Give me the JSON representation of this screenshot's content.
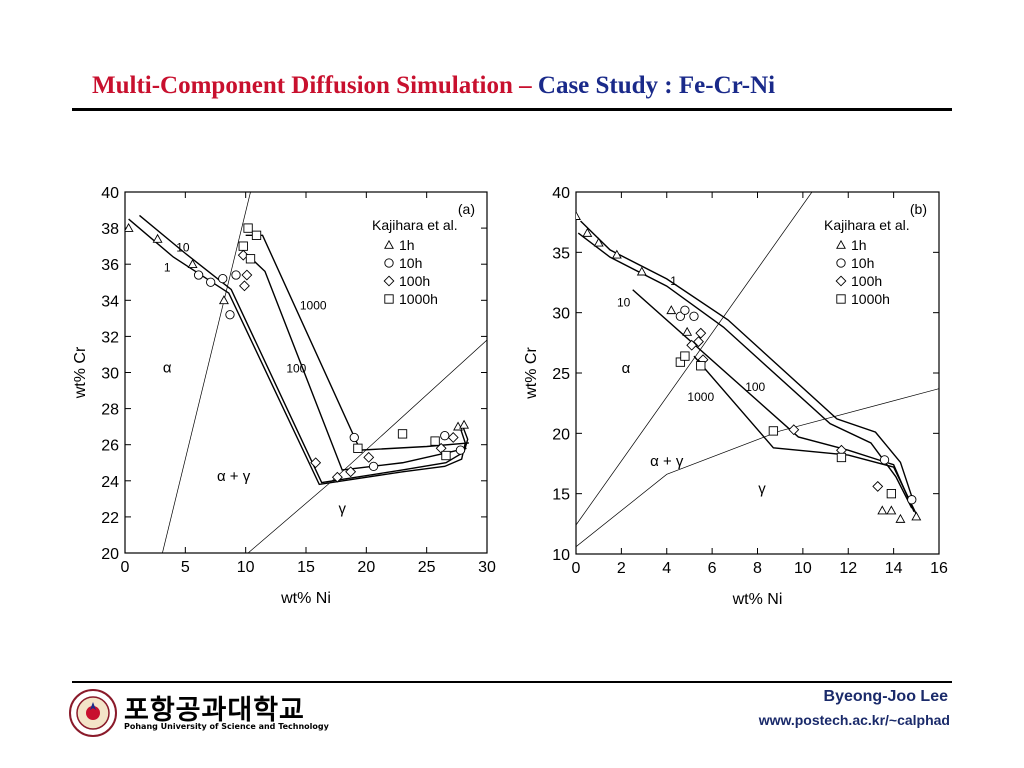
{
  "slide": {
    "title_part1": "Multi-Component Diffusion Simulation –",
    "title_part2": " Case Study : Fe-Cr-Ni",
    "university_kr": "포항공과대학교",
    "university_en": "Pohang University of Science and Technology",
    "author": "Byeong-Joo Lee",
    "url": "www.postech.ac.kr/~calphad",
    "title_colors": {
      "part1": "#c8102e",
      "part2": "#1a2a8a"
    }
  },
  "chart_data": [
    {
      "type": "line",
      "panel": "(a)",
      "xlabel": "wt% Ni",
      "ylabel": "wt% Cr",
      "xlim": [
        0,
        30
      ],
      "ylim": [
        20,
        40
      ],
      "xticks": [
        0,
        5,
        10,
        15,
        20,
        25,
        30
      ],
      "yticks": [
        20,
        22,
        24,
        26,
        28,
        30,
        32,
        34,
        36,
        38,
        40
      ],
      "legend_title": "Kajihara et al.",
      "legend_position": "top-right",
      "legend": [
        {
          "label": "1h",
          "marker": "triangle"
        },
        {
          "label": "10h",
          "marker": "circle"
        },
        {
          "label": "100h",
          "marker": "diamond"
        },
        {
          "label": "1000h",
          "marker": "square"
        }
      ],
      "region_labels": [
        {
          "text": "α",
          "x": 3.5,
          "y": 30
        },
        {
          "text": "α + γ",
          "x": 9,
          "y": 24
        },
        {
          "text": "γ",
          "x": 18,
          "y": 22.2
        }
      ],
      "boundaries": [
        [
          [
            3.1,
            20
          ],
          [
            10.4,
            40
          ]
        ],
        [
          [
            10.2,
            20
          ],
          [
            17,
            23.9
          ],
          [
            30,
            31.8
          ]
        ]
      ],
      "series": [
        {
          "name": "1",
          "label_pos": [
            3.5,
            35.6
          ],
          "points": [
            [
              0.3,
              38.5
            ],
            [
              4,
              36.4
            ],
            [
              8.6,
              34.4
            ],
            [
              16.1,
              23.8
            ],
            [
              23,
              24.5
            ],
            [
              26.5,
              24.8
            ],
            [
              27.9,
              25.2
            ],
            [
              28.2,
              26.1
            ],
            [
              27.8,
              26.9
            ]
          ]
        },
        {
          "name": "10",
          "label_pos": [
            4.8,
            36.7
          ],
          "points": [
            [
              1.2,
              38.7
            ],
            [
              5,
              36.6
            ],
            [
              8.8,
              34.6
            ],
            [
              16.3,
              23.9
            ],
            [
              23,
              24.6
            ],
            [
              26.6,
              25
            ],
            [
              28.1,
              25.6
            ],
            [
              28.4,
              26.3
            ],
            [
              28,
              27
            ]
          ]
        },
        {
          "name": "100",
          "label_pos": [
            14.2,
            30
          ],
          "points": [
            [
              10.5,
              36.3
            ],
            [
              11.6,
              35.6
            ],
            [
              18,
              24.6
            ],
            [
              23,
              25
            ],
            [
              28.3,
              25.8
            ]
          ]
        },
        {
          "name": "1000",
          "label_pos": [
            15.6,
            33.5
          ],
          "points": [
            [
              10,
              37.6
            ],
            [
              11.4,
              37.6
            ],
            [
              19.5,
              25.7
            ],
            [
              25,
              25.9
            ],
            [
              28.5,
              26.1
            ]
          ]
        }
      ],
      "markers": {
        "triangle": [
          [
            0.3,
            38
          ],
          [
            2.7,
            37.4
          ],
          [
            5.6,
            36
          ],
          [
            8.2,
            34
          ],
          [
            27.6,
            27
          ],
          [
            28.1,
            27.1
          ]
        ],
        "circle": [
          [
            6.1,
            35.4
          ],
          [
            7.1,
            35
          ],
          [
            8.1,
            35.2
          ],
          [
            9.2,
            35.4
          ],
          [
            8.7,
            33.2
          ],
          [
            19,
            26.4
          ],
          [
            20.6,
            24.8
          ],
          [
            26.5,
            26.5
          ],
          [
            27.8,
            25.7
          ]
        ],
        "diamond": [
          [
            9.8,
            36.5
          ],
          [
            10.1,
            35.4
          ],
          [
            9.9,
            34.8
          ],
          [
            15.8,
            25
          ],
          [
            17.6,
            24.2
          ],
          [
            18.7,
            24.5
          ],
          [
            20.2,
            25.3
          ],
          [
            26.2,
            25.8
          ],
          [
            27.2,
            26.4
          ]
        ],
        "square": [
          [
            10.2,
            38
          ],
          [
            10.9,
            37.6
          ],
          [
            9.8,
            37
          ],
          [
            10.4,
            36.3
          ],
          [
            19.3,
            25.8
          ],
          [
            23,
            26.6
          ],
          [
            25.7,
            26.2
          ],
          [
            26.6,
            25.4
          ]
        ]
      }
    },
    {
      "type": "line",
      "panel": "(b)",
      "xlabel": "wt% Ni",
      "ylabel": "wt% Cr",
      "xlim": [
        0,
        16
      ],
      "ylim": [
        10,
        40
      ],
      "xticks": [
        0,
        2,
        4,
        6,
        8,
        10,
        12,
        14,
        16
      ],
      "yticks": [
        10,
        15,
        20,
        25,
        30,
        35,
        40
      ],
      "legend_title": "Kajihara et al.",
      "legend_position": "top-right",
      "legend": [
        {
          "label": "1h",
          "marker": "triangle"
        },
        {
          "label": "10h",
          "marker": "circle"
        },
        {
          "label": "100h",
          "marker": "diamond"
        },
        {
          "label": "1000h",
          "marker": "square"
        }
      ],
      "region_labels": [
        {
          "text": "α",
          "x": 2.2,
          "y": 25
        },
        {
          "text": "α + γ",
          "x": 4,
          "y": 17.3
        },
        {
          "text": "γ",
          "x": 8.2,
          "y": 15
        }
      ],
      "boundaries": [
        [
          [
            0,
            12.4
          ],
          [
            10.4,
            40
          ]
        ],
        [
          [
            0,
            10.6
          ],
          [
            4,
            16.6
          ],
          [
            9,
            20.2
          ],
          [
            16,
            23.7
          ]
        ]
      ],
      "series": [
        {
          "name": "1",
          "label_pos": [
            4.3,
            32.3
          ],
          "points": [
            [
              0.2,
              37.6
            ],
            [
              1.5,
              35.2
            ],
            [
              4,
              32.8
            ],
            [
              6.7,
              29.4
            ],
            [
              11.5,
              21.2
            ],
            [
              13.2,
              20.1
            ],
            [
              14.3,
              17.6
            ],
            [
              14.9,
              14.2
            ]
          ]
        },
        {
          "name": "10",
          "label_pos": [
            2.1,
            30.5
          ],
          "points": [
            [
              0.1,
              36.6
            ],
            [
              1.5,
              34.6
            ],
            [
              4,
              32.2
            ],
            [
              6.5,
              28.8
            ],
            [
              11.2,
              20.8
            ],
            [
              13,
              19.2
            ],
            [
              14.1,
              16.4
            ],
            [
              14.8,
              13.8
            ]
          ]
        },
        {
          "name": "100",
          "label_pos": [
            7.9,
            23.5
          ],
          "points": [
            [
              2.5,
              31.9
            ],
            [
              9.8,
              19.7
            ],
            [
              12,
              18.6
            ],
            [
              14,
              17.4
            ],
            [
              14.9,
              13.5
            ]
          ]
        },
        {
          "name": "1000",
          "label_pos": [
            5.5,
            22.7
          ],
          "points": [
            [
              5.2,
              26.4
            ],
            [
              8.7,
              18.8
            ],
            [
              12,
              18.2
            ],
            [
              14,
              17.2
            ],
            [
              15,
              13.3
            ]
          ]
        }
      ],
      "markers": {
        "triangle": [
          [
            0,
            38
          ],
          [
            0.5,
            36.6
          ],
          [
            1,
            35.8
          ],
          [
            1.8,
            34.8
          ],
          [
            2.9,
            33.4
          ],
          [
            4.2,
            30.2
          ],
          [
            4.9,
            28.4
          ],
          [
            13.5,
            13.6
          ],
          [
            13.9,
            13.6
          ],
          [
            14.3,
            12.9
          ],
          [
            15,
            13.1
          ]
        ],
        "circle": [
          [
            4.6,
            29.7
          ],
          [
            4.8,
            30.2
          ],
          [
            5.2,
            29.7
          ],
          [
            13.6,
            17.8
          ],
          [
            14.8,
            14.5
          ]
        ],
        "diamond": [
          [
            5.1,
            27.3
          ],
          [
            5.4,
            27.6
          ],
          [
            5.5,
            28.3
          ],
          [
            5.6,
            26.1
          ],
          [
            9.6,
            20.3
          ],
          [
            11.7,
            18.6
          ],
          [
            13.3,
            15.6
          ]
        ],
        "square": [
          [
            4.6,
            25.9
          ],
          [
            4.8,
            26.4
          ],
          [
            5.5,
            25.6
          ],
          [
            8.7,
            20.2
          ],
          [
            11.7,
            18
          ],
          [
            13.9,
            15
          ]
        ]
      }
    }
  ]
}
